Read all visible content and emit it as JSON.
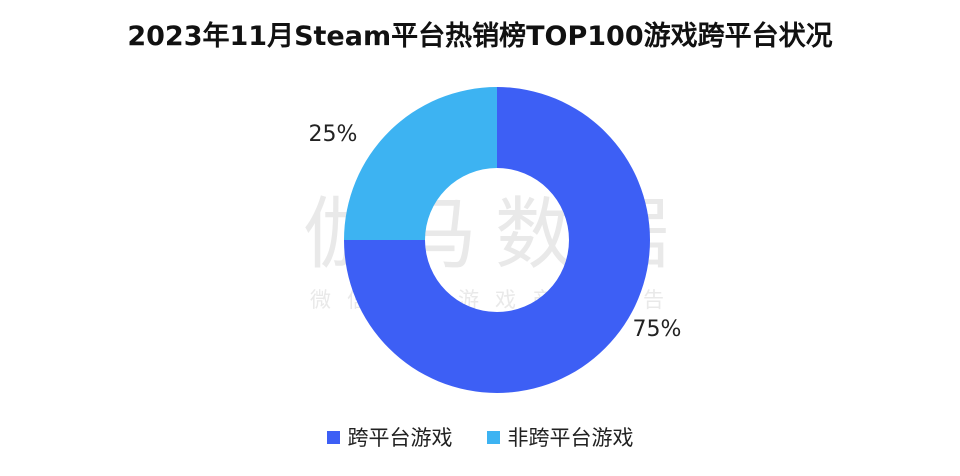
{
  "chart_data": {
    "type": "pie",
    "variant": "donut",
    "title": "2023年11月Steam平台热销榜TOP100游戏跨平台状况",
    "categories": [
      "跨平台游戏",
      "非跨平台游戏"
    ],
    "values": [
      75,
      25
    ],
    "data_labels": [
      "75%",
      "25%"
    ],
    "colors": [
      "#3d5ff5",
      "#3db3f2"
    ],
    "legend_position": "bottom"
  },
  "watermark": {
    "main": "伽马数据",
    "sub": "微信号：游戏产业报告"
  }
}
